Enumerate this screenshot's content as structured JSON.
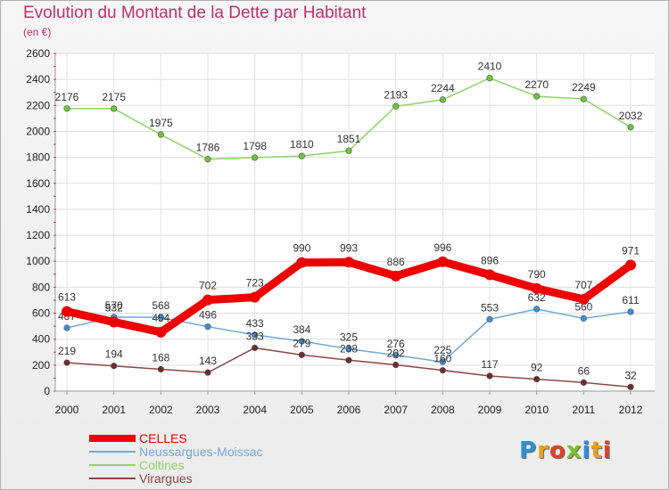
{
  "title": "Evolution du Montant de la Dette par Habitant",
  "subtitle": "(en €)",
  "logo": {
    "text": "Proxiti",
    "colors": [
      "#2e8fd4",
      "#e8a020",
      "#e0402a",
      "#7cbf2e",
      "#2e8fd4",
      "#e8a020",
      "#e0402a"
    ]
  },
  "chart_data": {
    "type": "line",
    "x": [
      "2000",
      "2001",
      "2002",
      "2003",
      "2004",
      "2005",
      "2006",
      "2007",
      "2008",
      "2009",
      "2010",
      "2011",
      "2012"
    ],
    "ylim": [
      0,
      2600
    ],
    "yticks": [
      0,
      200,
      400,
      600,
      800,
      1000,
      1200,
      1400,
      1600,
      1800,
      2000,
      2200,
      2400,
      2600
    ],
    "grid": true,
    "legend_position": "bottom-left",
    "series": [
      {
        "name": "Coltines",
        "color": "#8fd466",
        "marker": "#6cc43a",
        "values": [
          2176,
          2175,
          1975,
          1786,
          1798,
          1810,
          1851,
          2193,
          2244,
          2410,
          2270,
          2249,
          2032
        ],
        "labels": [
          "2176",
          "2175",
          "1975",
          "1786",
          "1798",
          "1810",
          "1851",
          "2193",
          "2244",
          "2410",
          "2270",
          "2249",
          "2032"
        ]
      },
      {
        "name": "Neussargues-Moissac",
        "color": "#74a8d6",
        "marker": "#3f8fd0",
        "values": [
          487,
          570,
          568,
          496,
          433,
          384,
          325,
          276,
          225,
          553,
          632,
          560,
          611
        ],
        "labels": [
          "487",
          "570",
          "568",
          "496",
          "433",
          "384",
          "325",
          "276",
          "225",
          "553",
          "632",
          "560",
          "611"
        ]
      },
      {
        "name": "Virargues",
        "color": "#8a4848",
        "marker": "#6e2c2c",
        "values": [
          219,
          194,
          168,
          143,
          333,
          279,
          238,
          202,
          160,
          117,
          92,
          66,
          32
        ],
        "labels": [
          "219",
          "194",
          "168",
          "143",
          "333",
          "279",
          "238",
          "202",
          "160",
          "117",
          "92",
          "66",
          "32"
        ]
      },
      {
        "name": "CELLES",
        "color": "#ee0000",
        "marker": "#ee0000",
        "values": [
          613,
          532,
          454,
          702,
          723,
          990,
          993,
          886,
          996,
          896,
          790,
          707,
          971
        ],
        "labels": [
          "613",
          "532",
          "454",
          "702",
          "723",
          "990",
          "993",
          "886",
          "996",
          "896",
          "790",
          "707",
          "971"
        ]
      }
    ],
    "legend": [
      "CELLES",
      "Neussargues-Moissac",
      "Coltines",
      "Virargues"
    ]
  }
}
